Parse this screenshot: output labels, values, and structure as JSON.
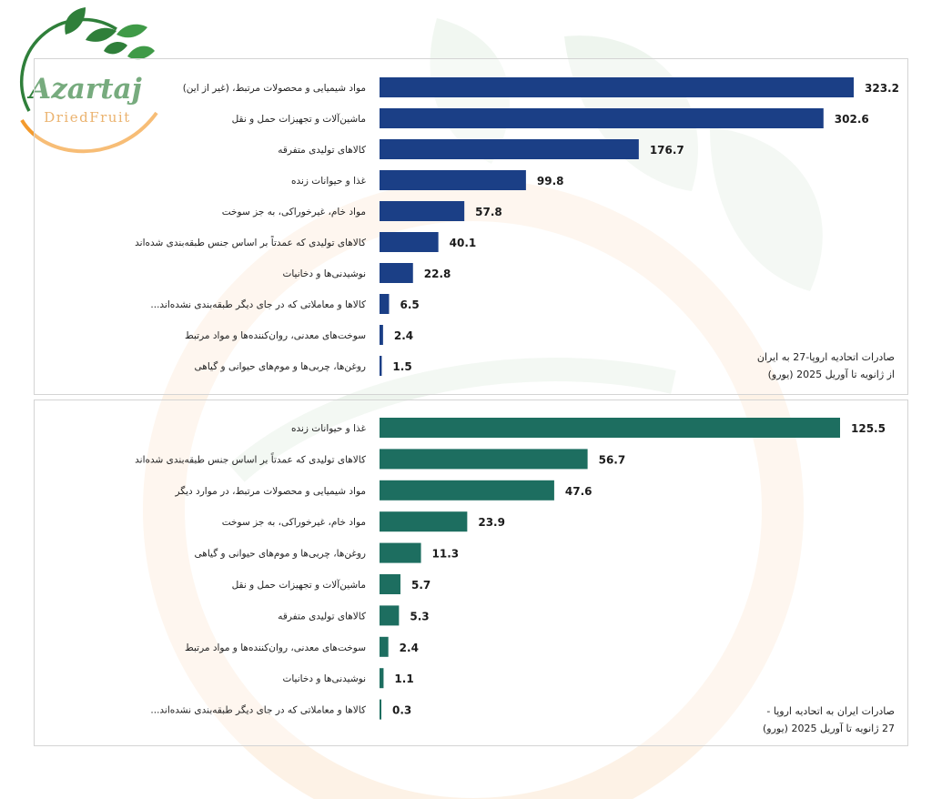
{
  "logo": {
    "brand": "Azartaj",
    "tagline": "DriedFruit"
  },
  "colors": {
    "panel_1_bar": "#1b3f86",
    "panel_2_bar": "#1d6e60",
    "logo_green": "#2f7f3a",
    "logo_orange": "#f39a2d"
  },
  "chart_data": [
    {
      "type": "bar",
      "orientation": "horizontal",
      "caption_lines": [
        "صادرات اتحادیه اروپا-27 به ایران",
        "از ژانویه تا آوریل 2025 (یورو)"
      ],
      "categories": [
        "مواد شیمیایی و محصولات مرتبط، (غیر از این)",
        "ماشین‌آلات و تجهیزات حمل و نقل",
        "کالاهای تولیدی متفرقه",
        "غذا و حیوانات زنده",
        "مواد خام، غیرخوراکی، به جز سوخت",
        "کالاهای تولیدی که عمدتاً بر اساس جنس طبقه‌بندی شده‌اند",
        "نوشیدنی‌ها و دخانیات",
        "کالاها و معاملاتی که در جای دیگر طبقه‌بندی نشده‌اند...",
        "سوخت‌های معدنی، روان‌کننده‌ها و مواد مرتبط",
        "روغن‌ها، چربی‌ها و موم‌های حیوانی و گیاهی"
      ],
      "values": [
        323.2,
        302.6,
        176.7,
        99.8,
        57.8,
        40.1,
        22.8,
        6.5,
        2.4,
        1.5
      ],
      "value_labels": [
        "323.2",
        "302.6",
        "176.7",
        "99.8",
        "57.8",
        "40.1",
        "22.8",
        "6.5",
        "2.4",
        "1.5"
      ],
      "color": "#1b3f86"
    },
    {
      "type": "bar",
      "orientation": "horizontal",
      "caption_lines": [
        "صادرات ایران به اتحادیه اروپا -",
        "27 ژانویه تا آوریل 2025 (یورو)"
      ],
      "categories": [
        "غذا و حیوانات زنده",
        "کالاهای تولیدی که عمدتاً بر اساس جنس طبقه‌بندی شده‌اند",
        "مواد شیمیایی و محصولات مرتبط، در موارد دیگر",
        "مواد خام، غیرخوراکی، به جز سوخت",
        "روغن‌ها، چربی‌ها و موم‌های حیوانی و گیاهی",
        "ماشین‌آلات و تجهیزات حمل و نقل",
        "کالاهای تولیدی متفرقه",
        "سوخت‌های معدنی، روان‌کننده‌ها و مواد مرتبط",
        "نوشیدنی‌ها و دخانیات",
        "کالاها و معاملاتی که در جای دیگر طبقه‌بندی نشده‌اند..."
      ],
      "values": [
        125.5,
        56.7,
        47.6,
        23.9,
        11.3,
        5.7,
        5.3,
        2.4,
        1.1,
        0.3
      ],
      "value_labels": [
        "125.5",
        "56.7",
        "47.6",
        "23.9",
        "11.3",
        "5.7",
        "5.3",
        "2.4",
        "1.1",
        "0.3"
      ],
      "color": "#1d6e60"
    }
  ]
}
